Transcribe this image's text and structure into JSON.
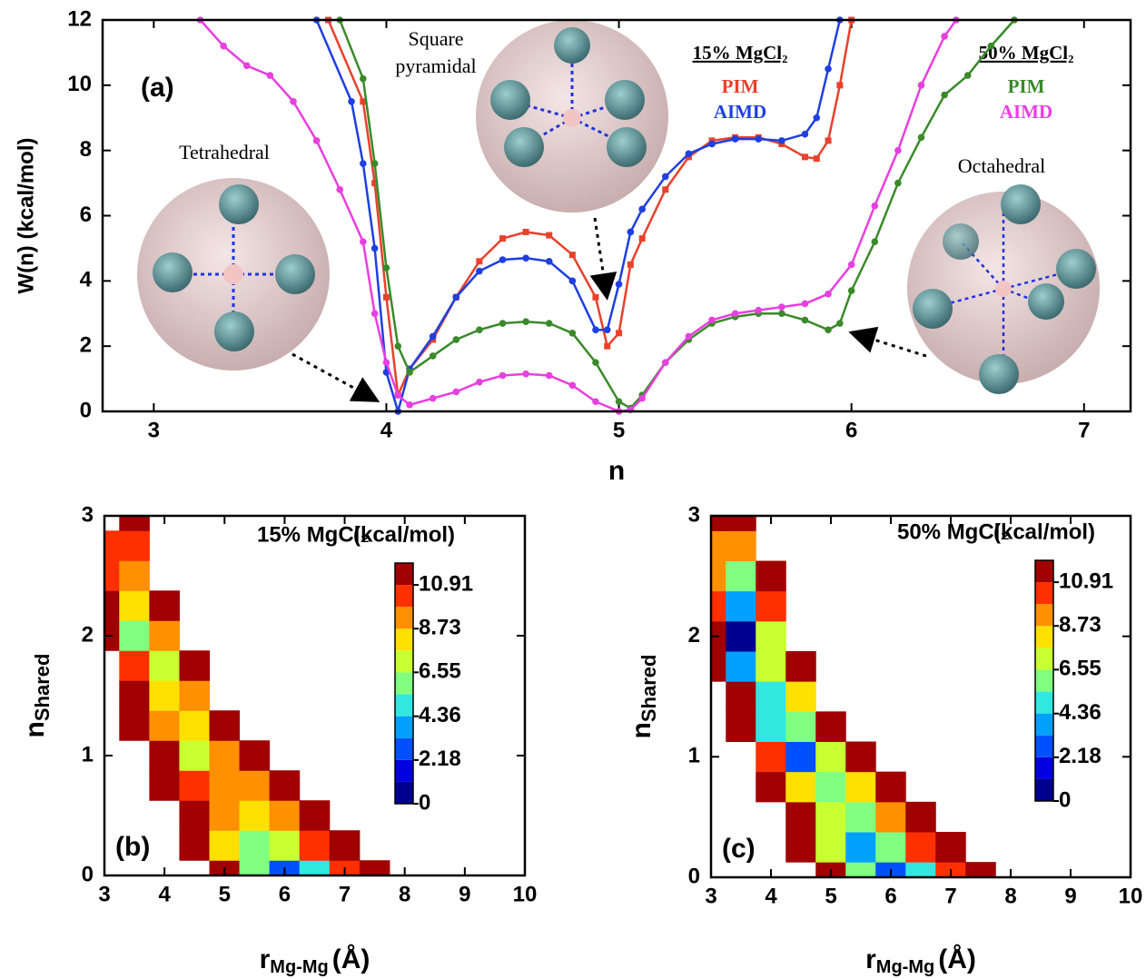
{
  "chart_data": [
    {
      "type": "line",
      "panel_label": "(a)",
      "xlabel": "n",
      "ylabel": "W(n) (kcal/mol)",
      "xlim": [
        2.78,
        7.2
      ],
      "ylim": [
        0,
        12
      ],
      "xticks": [
        3,
        4,
        5,
        6,
        7
      ],
      "yticks": [
        0,
        2,
        4,
        6,
        8,
        10,
        12
      ],
      "annotations": [
        "Tetrahedral",
        "Square",
        "pyramidal",
        "Octahedral"
      ],
      "series_groups": [
        {
          "name": "15% MgCl₂",
          "series": [
            {
              "name": "PIM",
              "color": "#e8412c",
              "marker": "square",
              "x": [
                3.75,
                3.9,
                3.95,
                4.0,
                4.05,
                4.1,
                4.2,
                4.3,
                4.4,
                4.5,
                4.6,
                4.7,
                4.8,
                4.9,
                4.95,
                5.0,
                5.05,
                5.1,
                5.2,
                5.3,
                5.4,
                5.5,
                5.6,
                5.7,
                5.8,
                5.85,
                5.9,
                5.95,
                6.0
              ],
              "values": [
                12,
                9.5,
                7,
                3.5,
                0.5,
                1.3,
                2.2,
                3.5,
                4.6,
                5.3,
                5.5,
                5.4,
                4.8,
                3.5,
                2.0,
                2.4,
                4.5,
                5.3,
                6.8,
                7.8,
                8.3,
                8.4,
                8.4,
                8.2,
                7.8,
                7.75,
                8.3,
                10,
                12
              ]
            },
            {
              "name": "AIMD",
              "color": "#1f3fe0",
              "marker": "circle",
              "x": [
                3.7,
                3.85,
                3.9,
                3.95,
                4.0,
                4.05,
                4.1,
                4.2,
                4.3,
                4.4,
                4.5,
                4.6,
                4.7,
                4.8,
                4.9,
                4.95,
                5.0,
                5.05,
                5.1,
                5.2,
                5.3,
                5.4,
                5.5,
                5.6,
                5.7,
                5.8,
                5.85,
                5.9,
                5.95
              ],
              "values": [
                12,
                9.5,
                7.6,
                5,
                1.2,
                0,
                1.3,
                2.3,
                3.5,
                4.3,
                4.65,
                4.7,
                4.6,
                4.0,
                2.5,
                2.5,
                3.9,
                5.5,
                6.2,
                7.2,
                7.9,
                8.2,
                8.35,
                8.35,
                8.3,
                8.5,
                9,
                10.5,
                12
              ]
            }
          ]
        },
        {
          "name": "50% MgCl₂",
          "series": [
            {
              "name": "PIM",
              "color": "#3a8a2a",
              "marker": "circle",
              "x": [
                3.8,
                3.9,
                3.95,
                4.0,
                4.05,
                4.1,
                4.2,
                4.3,
                4.4,
                4.5,
                4.6,
                4.7,
                4.8,
                4.9,
                5.0,
                5.05,
                5.1,
                5.2,
                5.3,
                5.4,
                5.5,
                5.6,
                5.7,
                5.8,
                5.9,
                5.95,
                6.0,
                6.1,
                6.2,
                6.3,
                6.4,
                6.5,
                6.6,
                6.7
              ],
              "values": [
                12,
                10.2,
                7.6,
                4.4,
                2.0,
                1.2,
                1.7,
                2.2,
                2.5,
                2.7,
                2.75,
                2.7,
                2.4,
                1.5,
                0.3,
                0.1,
                0.5,
                1.5,
                2.2,
                2.7,
                2.9,
                3.0,
                3.0,
                2.8,
                2.5,
                2.7,
                3.7,
                5.2,
                7.0,
                8.4,
                9.7,
                10.3,
                11.2,
                12
              ]
            },
            {
              "name": "AIMD",
              "color": "#e83fe0",
              "marker": "circle",
              "x": [
                3.2,
                3.3,
                3.4,
                3.5,
                3.6,
                3.7,
                3.8,
                3.9,
                3.95,
                4.0,
                4.05,
                4.1,
                4.2,
                4.3,
                4.4,
                4.5,
                4.6,
                4.7,
                4.8,
                4.9,
                5.0,
                5.05,
                5.1,
                5.2,
                5.3,
                5.4,
                5.5,
                5.6,
                5.7,
                5.8,
                5.9,
                6.0,
                6.1,
                6.2,
                6.3,
                6.4,
                6.45
              ],
              "values": [
                12,
                11.2,
                10.6,
                10.3,
                9.5,
                8.3,
                6.8,
                5.2,
                3,
                1.5,
                0.5,
                0.2,
                0.4,
                0.6,
                0.9,
                1.1,
                1.15,
                1.1,
                0.8,
                0.3,
                0.0,
                0.05,
                0.4,
                1.5,
                2.3,
                2.8,
                3.0,
                3.1,
                3.2,
                3.3,
                3.6,
                4.5,
                6.3,
                8.0,
                10,
                11.5,
                12
              ]
            }
          ]
        }
      ]
    },
    {
      "type": "contour",
      "panel_label": "(b)",
      "title": "15% MgCl₂",
      "colorbar_title": "(kcal/mol)",
      "xlabel": "r",
      "xlabel_sub": "Mg-Mg",
      "xlabel_unit": "(Å)",
      "ylabel": "n",
      "ylabel_sub": "Shared",
      "xlim": [
        3,
        10
      ],
      "ylim": [
        0,
        3
      ],
      "xticks": [
        3,
        4,
        5,
        6,
        7,
        8,
        9,
        10
      ],
      "yticks": [
        0,
        1,
        2,
        3
      ],
      "x": [
        3,
        3.5,
        4,
        4.5,
        5,
        5.5,
        6,
        6.5,
        7,
        7.5
      ],
      "y": [
        0,
        0.25,
        0.5,
        0.75,
        1,
        1.25,
        1.5,
        1.75,
        2,
        2.25,
        2.5,
        2.75,
        3
      ],
      "z": [
        [
          null,
          null,
          null,
          null,
          12,
          6,
          3,
          5,
          10,
          12
        ],
        [
          null,
          null,
          null,
          11,
          8,
          6,
          7,
          10,
          12,
          null
        ],
        [
          null,
          null,
          null,
          12,
          9,
          8,
          9,
          12,
          null,
          null
        ],
        [
          null,
          null,
          12,
          10,
          9,
          9,
          11,
          null,
          null,
          null
        ],
        [
          null,
          null,
          12,
          7,
          9,
          11,
          null,
          null,
          null,
          null
        ],
        [
          null,
          12,
          9,
          8,
          12,
          null,
          null,
          null,
          null,
          null
        ],
        [
          null,
          12,
          8,
          9,
          null,
          null,
          null,
          null,
          null,
          null
        ],
        [
          null,
          10,
          7,
          11,
          null,
          null,
          null,
          null,
          null,
          null
        ],
        [
          12,
          6,
          9,
          null,
          null,
          null,
          null,
          null,
          null,
          null
        ],
        [
          11,
          8,
          12,
          null,
          null,
          null,
          null,
          null,
          null,
          null
        ],
        [
          10,
          9,
          null,
          null,
          null,
          null,
          null,
          null,
          null,
          null
        ],
        [
          10,
          10,
          null,
          null,
          null,
          null,
          null,
          null,
          null,
          null
        ],
        [
          null,
          12,
          null,
          null,
          null,
          null,
          null,
          null,
          null,
          null
        ]
      ],
      "zlim": [
        0,
        12
      ],
      "colorbar_ticks": [
        0,
        2.18,
        4.36,
        6.55,
        8.73,
        10.91
      ],
      "colors": [
        "#00008f",
        "#0000e0",
        "#0050ff",
        "#00a0ff",
        "#30e8e0",
        "#80ff80",
        "#c8ff30",
        "#ffe000",
        "#ff9000",
        "#ff3000",
        "#a00000"
      ]
    },
    {
      "type": "contour",
      "panel_label": "(c)",
      "title": "50% MgCl₂",
      "colorbar_title": "(kcal/mol)",
      "xlabel": "r",
      "xlabel_sub": "Mg-Mg",
      "xlabel_unit": "(Å)",
      "ylabel": "n",
      "ylabel_sub": "Shared",
      "xlim": [
        3,
        10
      ],
      "ylim": [
        0,
        3
      ],
      "xticks": [
        3,
        4,
        5,
        6,
        7,
        8,
        9,
        10
      ],
      "yticks": [
        0,
        1,
        2,
        3
      ],
      "x": [
        3,
        3.5,
        4,
        4.5,
        5,
        5.5,
        6,
        6.5,
        7,
        7.5
      ],
      "y": [
        0,
        0.25,
        0.5,
        0.75,
        1,
        1.25,
        1.5,
        1.75,
        2,
        2.25,
        2.5,
        2.75,
        3
      ],
      "z": [
        [
          null,
          null,
          null,
          null,
          12,
          6,
          3,
          5,
          10,
          12
        ],
        [
          null,
          null,
          null,
          11,
          7,
          4,
          6,
          10,
          12,
          null
        ],
        [
          null,
          null,
          null,
          11,
          7,
          6,
          9,
          12,
          null,
          null
        ],
        [
          null,
          null,
          12,
          8,
          6,
          8,
          11,
          null,
          null,
          null
        ],
        [
          null,
          null,
          10,
          3,
          7,
          11,
          null,
          null,
          null,
          null
        ],
        [
          null,
          12,
          5,
          6,
          11,
          null,
          null,
          null,
          null,
          null
        ],
        [
          null,
          11,
          5,
          8,
          null,
          null,
          null,
          null,
          null,
          null
        ],
        [
          12,
          4,
          7,
          12,
          null,
          null,
          null,
          null,
          null,
          null
        ],
        [
          11,
          1,
          7,
          null,
          null,
          null,
          null,
          null,
          null,
          null
        ],
        [
          10,
          4,
          10,
          null,
          null,
          null,
          null,
          null,
          null,
          null
        ],
        [
          9,
          6,
          12,
          null,
          null,
          null,
          null,
          null,
          null,
          null
        ],
        [
          9,
          9,
          null,
          null,
          null,
          null,
          null,
          null,
          null,
          null
        ],
        [
          12,
          12,
          null,
          null,
          null,
          null,
          null,
          null,
          null,
          null
        ]
      ],
      "zlim": [
        0,
        12
      ],
      "colorbar_ticks": [
        0,
        2.18,
        4.36,
        6.55,
        8.73,
        10.91
      ],
      "colors": [
        "#00008f",
        "#0000e0",
        "#0050ff",
        "#00a0ff",
        "#30e8e0",
        "#80ff80",
        "#c8ff30",
        "#ffe000",
        "#ff9000",
        "#ff3000",
        "#a00000"
      ]
    }
  ]
}
